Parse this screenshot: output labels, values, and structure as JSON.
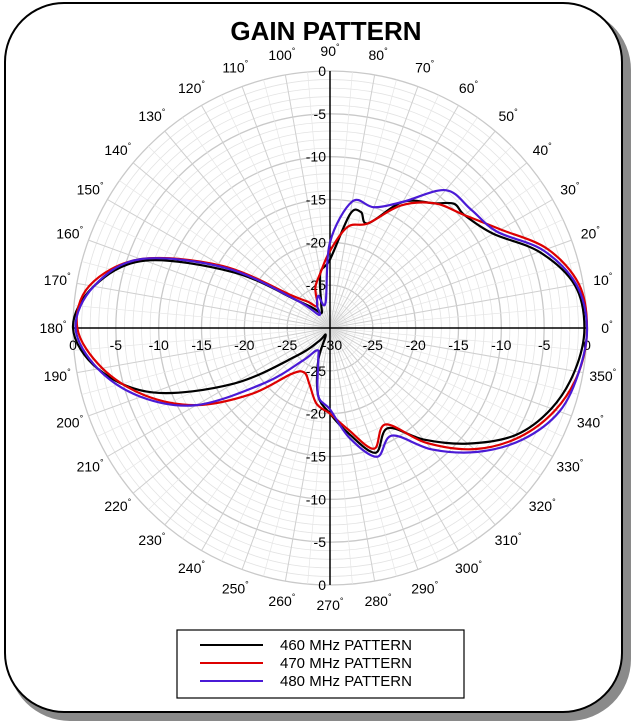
{
  "chart_data": {
    "type": "polar-line",
    "title": "GAIN PATTERN",
    "rlim": [
      -30,
      0
    ],
    "radial_ticks": [
      "0",
      "-5",
      "-10",
      "-15",
      "-20",
      "-25",
      "-30"
    ],
    "angle_ticks_deg": [
      0,
      10,
      20,
      30,
      40,
      50,
      60,
      70,
      80,
      90,
      100,
      110,
      120,
      130,
      140,
      150,
      160,
      170,
      180,
      190,
      200,
      210,
      220,
      230,
      240,
      250,
      260,
      270,
      280,
      290,
      300,
      310,
      320,
      330,
      340,
      350
    ],
    "angle_tick_suffix": "°",
    "grid": true,
    "legend_position": "bottom",
    "series": [
      {
        "name": "460 MHz PATTERN",
        "color": "#000000",
        "points": [
          [
            0,
            -0.3
          ],
          [
            10,
            -1
          ],
          [
            20,
            -4
          ],
          [
            30,
            -8
          ],
          [
            40,
            -9.5
          ],
          [
            45,
            -9.5
          ],
          [
            50,
            -11
          ],
          [
            60,
            -13
          ],
          [
            70,
            -17
          ],
          [
            75,
            -16
          ],
          [
            80,
            -16.5
          ],
          [
            90,
            -22
          ],
          [
            100,
            -23.5
          ],
          [
            110,
            -27
          ],
          [
            120,
            -28
          ],
          [
            130,
            -27
          ],
          [
            140,
            -25
          ],
          [
            150,
            -17
          ],
          [
            160,
            -7
          ],
          [
            170,
            -2
          ],
          [
            180,
            0
          ],
          [
            190,
            -2.5
          ],
          [
            200,
            -8
          ],
          [
            210,
            -17
          ],
          [
            220,
            -25
          ],
          [
            230,
            -28
          ],
          [
            240,
            -29
          ],
          [
            250,
            -26
          ],
          [
            260,
            -22
          ],
          [
            270,
            -20
          ],
          [
            280,
            -17.5
          ],
          [
            290,
            -14.5
          ],
          [
            300,
            -16.5
          ],
          [
            310,
            -13
          ],
          [
            320,
            -9
          ],
          [
            330,
            -5
          ],
          [
            340,
            -2.5
          ],
          [
            350,
            -1
          ]
        ]
      },
      {
        "name": "470 MHz PATTERN",
        "color": "#dd0000",
        "points": [
          [
            0,
            0
          ],
          [
            10,
            -0.5
          ],
          [
            20,
            -3
          ],
          [
            30,
            -7
          ],
          [
            40,
            -9.5
          ],
          [
            50,
            -11
          ],
          [
            60,
            -13.5
          ],
          [
            70,
            -17
          ],
          [
            80,
            -18
          ],
          [
            90,
            -21
          ],
          [
            100,
            -23.5
          ],
          [
            110,
            -25
          ],
          [
            120,
            -27
          ],
          [
            130,
            -26
          ],
          [
            140,
            -24
          ],
          [
            150,
            -15.5
          ],
          [
            160,
            -6.5
          ],
          [
            170,
            -1.5
          ],
          [
            180,
            -0.5
          ],
          [
            190,
            -3
          ],
          [
            200,
            -7
          ],
          [
            210,
            -12
          ],
          [
            220,
            -18
          ],
          [
            230,
            -23
          ],
          [
            240,
            -24
          ],
          [
            250,
            -23
          ],
          [
            260,
            -21
          ],
          [
            270,
            -20
          ],
          [
            280,
            -18
          ],
          [
            290,
            -15
          ],
          [
            300,
            -17
          ],
          [
            310,
            -12.5
          ],
          [
            320,
            -8
          ],
          [
            330,
            -4.5
          ],
          [
            340,
            -2
          ],
          [
            350,
            -0.5
          ]
        ]
      },
      {
        "name": "480 MHz PATTERN",
        "color": "#4a1ad6",
        "points": [
          [
            0,
            0
          ],
          [
            10,
            -0.8
          ],
          [
            20,
            -3.5
          ],
          [
            30,
            -7.5
          ],
          [
            40,
            -8.5
          ],
          [
            50,
            -9
          ],
          [
            60,
            -13
          ],
          [
            70,
            -15
          ],
          [
            80,
            -15
          ],
          [
            90,
            -20
          ],
          [
            100,
            -27
          ],
          [
            110,
            -26
          ],
          [
            120,
            -27
          ],
          [
            130,
            -28
          ],
          [
            140,
            -25
          ],
          [
            150,
            -16
          ],
          [
            160,
            -6.5
          ],
          [
            170,
            -2
          ],
          [
            180,
            -0.3
          ],
          [
            190,
            -2.5
          ],
          [
            200,
            -6.5
          ],
          [
            210,
            -12
          ],
          [
            220,
            -20
          ],
          [
            230,
            -25
          ],
          [
            240,
            -27
          ],
          [
            250,
            -26
          ],
          [
            260,
            -22
          ],
          [
            270,
            -20.5
          ],
          [
            280,
            -17
          ],
          [
            290,
            -14
          ],
          [
            300,
            -15.5
          ],
          [
            310,
            -11.5
          ],
          [
            320,
            -7.5
          ],
          [
            330,
            -4
          ],
          [
            340,
            -1.5
          ],
          [
            350,
            -0.5
          ]
        ]
      }
    ]
  }
}
